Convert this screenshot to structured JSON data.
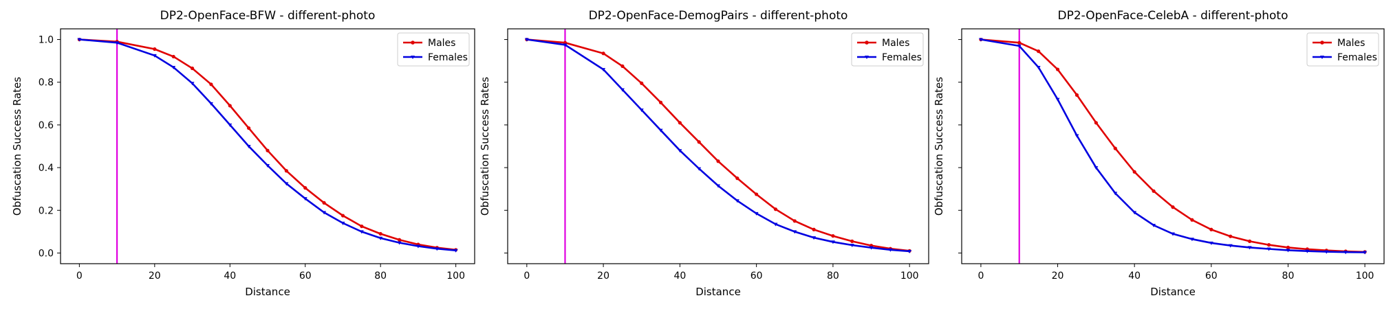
{
  "chart_data": [
    {
      "type": "line",
      "title": "DP2-OpenFace-BFW - different-photo",
      "xlabel": "Distance",
      "ylabel": "Obfuscation Success Rates",
      "xlim": [
        -5,
        105
      ],
      "ylim": [
        -0.05,
        1.05
      ],
      "xticks": [
        0,
        20,
        40,
        60,
        80,
        100
      ],
      "yticks": [
        0.0,
        0.2,
        0.4,
        0.6,
        0.8,
        1.0
      ],
      "show_y_tick_labels": true,
      "vline": {
        "x": 10,
        "color": "#e000e0"
      },
      "legend": "top-right",
      "x": [
        0,
        10,
        20,
        25,
        30,
        35,
        40,
        45,
        50,
        55,
        60,
        65,
        70,
        75,
        80,
        85,
        90,
        95,
        100
      ],
      "series": [
        {
          "name": "Males",
          "color": "#e00000",
          "marker": "circle",
          "values": [
            1.0,
            0.99,
            0.955,
            0.92,
            0.865,
            0.79,
            0.69,
            0.585,
            0.48,
            0.385,
            0.305,
            0.235,
            0.175,
            0.125,
            0.09,
            0.062,
            0.04,
            0.025,
            0.015
          ]
        },
        {
          "name": "Females",
          "color": "#0000e0",
          "marker": "triangle-down",
          "values": [
            1.0,
            0.985,
            0.925,
            0.87,
            0.795,
            0.7,
            0.6,
            0.5,
            0.41,
            0.325,
            0.255,
            0.19,
            0.14,
            0.1,
            0.07,
            0.048,
            0.032,
            0.02,
            0.012
          ]
        }
      ]
    },
    {
      "type": "line",
      "title": "DP2-OpenFace-DemogPairs - different-photo",
      "xlabel": "Distance",
      "ylabel": "Obfuscation Success Rates",
      "xlim": [
        -5,
        105
      ],
      "ylim": [
        -0.05,
        1.05
      ],
      "xticks": [
        0,
        20,
        40,
        60,
        80,
        100
      ],
      "yticks": [
        0.0,
        0.2,
        0.4,
        0.6,
        0.8,
        1.0
      ],
      "show_y_tick_labels": false,
      "vline": {
        "x": 10,
        "color": "#e000e0"
      },
      "legend": "top-right",
      "x": [
        0,
        10,
        20,
        25,
        30,
        35,
        40,
        45,
        50,
        55,
        60,
        65,
        70,
        75,
        80,
        85,
        90,
        95,
        100
      ],
      "series": [
        {
          "name": "Males",
          "color": "#e00000",
          "marker": "circle",
          "values": [
            1.0,
            0.985,
            0.935,
            0.875,
            0.795,
            0.705,
            0.61,
            0.52,
            0.43,
            0.35,
            0.275,
            0.205,
            0.15,
            0.11,
            0.08,
            0.055,
            0.035,
            0.02,
            0.01
          ]
        },
        {
          "name": "Females",
          "color": "#0000e0",
          "marker": "triangle-down",
          "values": [
            1.0,
            0.975,
            0.86,
            0.765,
            0.67,
            0.575,
            0.48,
            0.395,
            0.315,
            0.245,
            0.185,
            0.135,
            0.1,
            0.072,
            0.052,
            0.037,
            0.025,
            0.015,
            0.008
          ]
        }
      ]
    },
    {
      "type": "line",
      "title": "DP2-OpenFace-CelebA - different-photo",
      "xlabel": "Distance",
      "ylabel": "Obfuscation Success Rates",
      "xlim": [
        -5,
        105
      ],
      "ylim": [
        -0.05,
        1.05
      ],
      "xticks": [
        0,
        20,
        40,
        60,
        80,
        100
      ],
      "yticks": [
        0.0,
        0.2,
        0.4,
        0.6,
        0.8,
        1.0
      ],
      "show_y_tick_labels": false,
      "vline": {
        "x": 10,
        "color": "#e000e0"
      },
      "legend": "top-right",
      "x": [
        0,
        10,
        15,
        20,
        25,
        30,
        35,
        40,
        45,
        50,
        55,
        60,
        65,
        70,
        75,
        80,
        85,
        90,
        95,
        100
      ],
      "series": [
        {
          "name": "Males",
          "color": "#e00000",
          "marker": "circle",
          "values": [
            1.0,
            0.985,
            0.945,
            0.86,
            0.74,
            0.61,
            0.49,
            0.38,
            0.29,
            0.215,
            0.155,
            0.11,
            0.078,
            0.055,
            0.038,
            0.026,
            0.018,
            0.012,
            0.008,
            0.005
          ]
        },
        {
          "name": "Females",
          "color": "#0000e0",
          "marker": "triangle-down",
          "values": [
            1.0,
            0.97,
            0.87,
            0.72,
            0.55,
            0.4,
            0.28,
            0.19,
            0.13,
            0.09,
            0.065,
            0.047,
            0.035,
            0.026,
            0.019,
            0.013,
            0.009,
            0.006,
            0.004,
            0.003
          ]
        }
      ]
    }
  ]
}
